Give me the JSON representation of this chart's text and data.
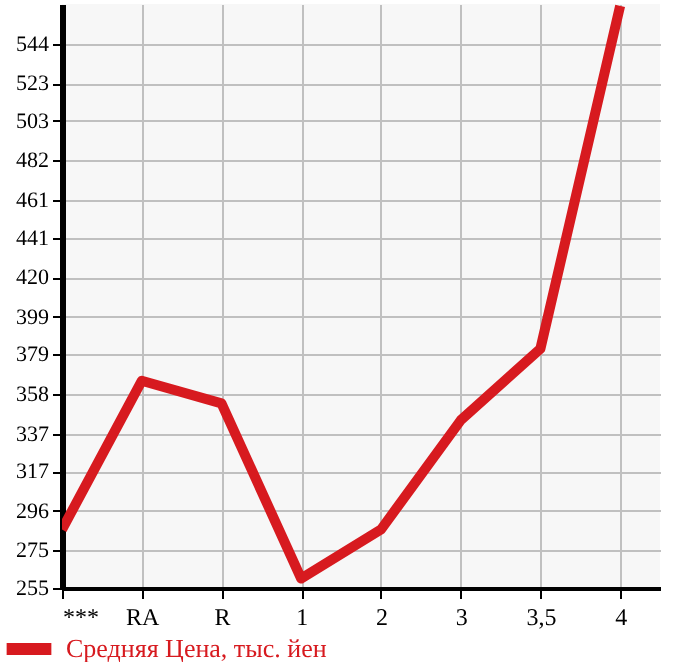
{
  "chart_data": {
    "type": "line",
    "categories": [
      "***",
      "RA",
      "R",
      "1",
      "2",
      "3",
      "3,5",
      "4"
    ],
    "series": [
      {
        "name": "Средняя Цена, тыс. йен",
        "color": "#d71a1f",
        "values": [
          286,
          365,
          353,
          260,
          286,
          344,
          382,
          564
        ]
      }
    ],
    "ylim": [
      255,
      565
    ],
    "yticks": [
      255,
      275,
      296,
      317,
      337,
      358,
      379,
      399,
      420,
      441,
      461,
      482,
      503,
      523,
      544
    ],
    "grid": true,
    "legend": "bottom",
    "marker": "none",
    "line_style": "solid"
  }
}
